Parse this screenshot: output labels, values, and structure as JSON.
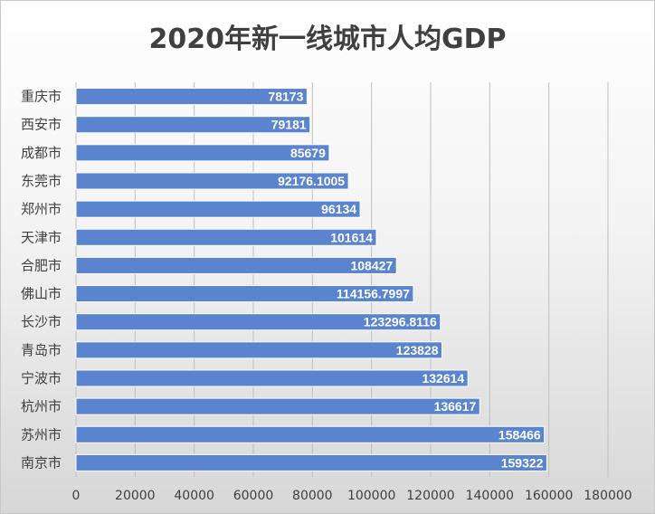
{
  "chart_data": {
    "type": "bar",
    "orientation": "horizontal",
    "title": "2020年新一线城市人均GDP",
    "xlabel": "",
    "ylabel": "",
    "xlim": [
      0,
      180000
    ],
    "x_ticks": [
      "0",
      "20000",
      "40000",
      "60000",
      "80000",
      "100000",
      "120000",
      "140000",
      "160000",
      "180000"
    ],
    "grid": true,
    "bar_color": "#5b84cf",
    "categories": [
      "重庆市",
      "西安市",
      "成都市",
      "东莞市",
      "郑州市",
      "天津市",
      "合肥市",
      "佛山市",
      "长沙市",
      "青岛市",
      "宁波市",
      "杭州市",
      "苏州市",
      "南京市"
    ],
    "values": [
      78173,
      79181,
      85679,
      92176.1005,
      96134,
      101614,
      108427,
      114156.7997,
      123296.8116,
      123828,
      132614,
      136617,
      158466,
      159322
    ],
    "value_labels": [
      "78173",
      "79181",
      "85679",
      "92176.1005",
      "96134",
      "101614",
      "108427",
      "114156.7997",
      "123296.8116",
      "123828",
      "132614",
      "136617",
      "158466",
      "159322"
    ]
  }
}
